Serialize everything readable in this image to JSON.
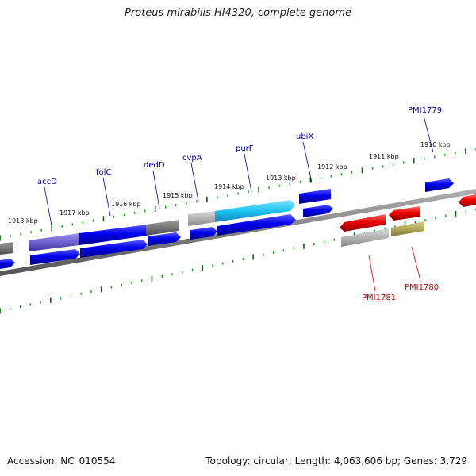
{
  "title": "Proteus mirabilis HI4320, complete genome",
  "footer": {
    "accession": "Accession: NC_010554",
    "stats": "Topology: circular; Length: 4,063,606 bp; Genes: 3,729"
  },
  "colors": {
    "backbone": "#808080",
    "gene_label_forward": "#000099",
    "gene_label_reverse": "#cc0000",
    "tick_major": "#006600",
    "tick_minor": "#00aa00"
  },
  "kbp_labels": [
    "1918 kbp",
    "1917 kbp",
    "1916 kbp",
    "1915 kbp",
    "1914 kbp",
    "1913 kbp",
    "1912 kbp",
    "1911 kbp",
    "1910 kbp"
  ],
  "gene_labels": {
    "accD": "accD",
    "folC": "folC",
    "dedD": "dedD",
    "cvpA": "cvpA",
    "purF": "purF",
    "ubiX": "ubiX",
    "PMI1779": "PMI1779",
    "PMI1781": "PMI1781",
    "PMI1780": "PMI1780"
  }
}
